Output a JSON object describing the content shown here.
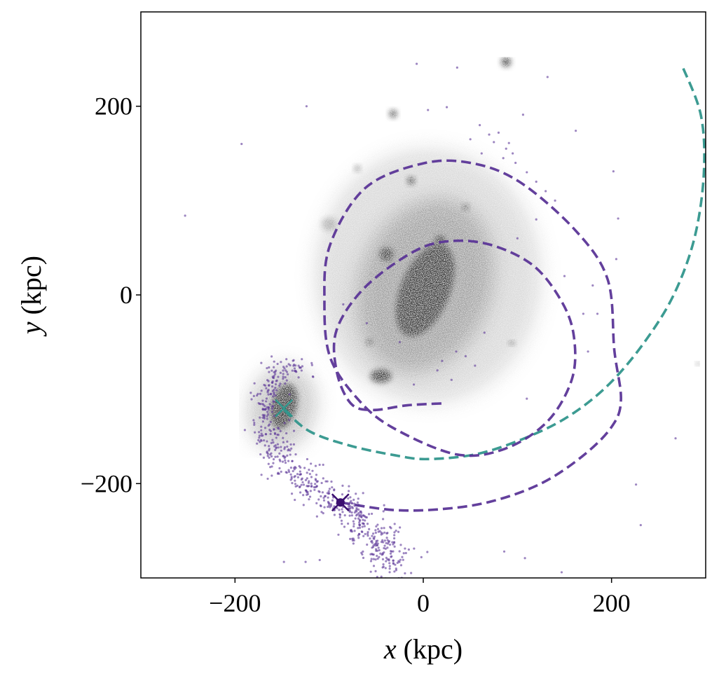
{
  "chart_data": {
    "type": "scatter",
    "title": "",
    "xlabel_var": "x",
    "xlabel_unit": "(kpc)",
    "ylabel_var": "y",
    "ylabel_unit": "(kpc)",
    "xlim": [
      -300,
      300
    ],
    "ylim": [
      -300,
      300
    ],
    "xticks": [
      -200,
      0,
      200
    ],
    "yticks": [
      -200,
      0,
      200
    ],
    "xtick_labels": [
      "−200",
      "0",
      "200"
    ],
    "ytick_labels": [
      "−200",
      "0",
      "200"
    ],
    "grid": false,
    "colors": {
      "teal": "#31968c",
      "purple": "#5b3597",
      "dark_purple": "#3b0f70",
      "gray": "#3a3a3a"
    },
    "galaxies": [
      {
        "name": "host-halo",
        "x": 5,
        "y": 20,
        "rx": 120,
        "ry": 135,
        "angle": 0,
        "opacity": 0.18
      },
      {
        "name": "host-inner-halo",
        "x": 2,
        "y": 10,
        "rx": 70,
        "ry": 95,
        "angle": 20,
        "opacity": 0.35
      },
      {
        "name": "host-core",
        "x": 2,
        "y": 5,
        "rx": 26,
        "ry": 52,
        "angle": 22,
        "opacity": 0.95
      },
      {
        "name": "satellite-main",
        "x": -148,
        "y": -118,
        "rx": 13,
        "ry": 24,
        "angle": 15,
        "opacity": 0.95
      },
      {
        "name": "satellite-main-halo",
        "x": -150,
        "y": -120,
        "rx": 35,
        "ry": 45,
        "angle": 15,
        "opacity": 0.3
      },
      {
        "name": "sat-a",
        "x": -45,
        "y": -86,
        "rx": 11,
        "ry": 7,
        "angle": 0,
        "opacity": 0.95
      },
      {
        "name": "sat-b",
        "x": -39,
        "y": 43,
        "rx": 7,
        "ry": 7,
        "angle": 0,
        "opacity": 0.95
      },
      {
        "name": "sat-c",
        "x": 18,
        "y": 58,
        "rx": 6,
        "ry": 5,
        "angle": 0,
        "opacity": 0.9
      },
      {
        "name": "sat-d",
        "x": 88,
        "y": 247,
        "rx": 5,
        "ry": 5,
        "angle": 0,
        "opacity": 0.95
      },
      {
        "name": "sat-e",
        "x": -32,
        "y": 192,
        "rx": 4,
        "ry": 4,
        "angle": 0,
        "opacity": 0.9
      },
      {
        "name": "sat-f",
        "x": -13,
        "y": 121,
        "rx": 4,
        "ry": 4,
        "angle": 0,
        "opacity": 0.9
      },
      {
        "name": "sat-g",
        "x": 45,
        "y": 93,
        "rx": 3,
        "ry": 3,
        "angle": 0,
        "opacity": 0.8
      },
      {
        "name": "sat-h",
        "x": -70,
        "y": 134,
        "rx": 3,
        "ry": 3,
        "angle": 0,
        "opacity": 0.6
      },
      {
        "name": "sat-i",
        "x": -100,
        "y": 75,
        "rx": 8,
        "ry": 7,
        "angle": 0,
        "opacity": 0.3
      },
      {
        "name": "sat-j",
        "x": -57,
        "y": -50,
        "rx": 3,
        "ry": 3,
        "angle": 0,
        "opacity": 0.8
      },
      {
        "name": "sat-k",
        "x": 94,
        "y": -51,
        "rx": 3,
        "ry": 2,
        "angle": 0,
        "opacity": 0.8
      },
      {
        "name": "sat-l",
        "x": 292,
        "y": -73,
        "rx": 2,
        "ry": 1.5,
        "angle": 0,
        "opacity": 0.8
      }
    ],
    "series": [
      {
        "name": "satellite-orbit",
        "style": "dashed",
        "color": "teal",
        "x": [
          -148,
          -120,
          -77,
          -30,
          5,
          60,
          117,
          160,
          199,
          235,
          266,
          288,
          298,
          295,
          275
        ],
        "y": [
          -122,
          -145,
          -160,
          -170,
          -174,
          -168,
          -148,
          -125,
          -93,
          -50,
          0,
          60,
          128,
          190,
          243
        ]
      },
      {
        "name": "stream-orbit",
        "style": "dashed",
        "color": "purple",
        "x": [
          -88,
          -32,
          20,
          72,
          125,
          169,
          200,
          210,
          203,
          196,
          162,
          102,
          50,
          -2,
          -62,
          -99,
          -105,
          -99,
          -69,
          -32,
          35,
          87,
          132,
          158,
          160,
          147,
          117,
          72,
          28,
          -10,
          -62,
          -92,
          -92,
          -77,
          -54,
          -17,
          20
        ],
        "y": [
          -220,
          -228,
          -227,
          -219,
          -200,
          -171,
          -140,
          -111,
          -59,
          16,
          68,
          120,
          140,
          139,
          113,
          53,
          -7,
          -66,
          -111,
          -141,
          -169,
          -163,
          -134,
          -89,
          -44,
          -7,
          31,
          53,
          57,
          46,
          8,
          -37,
          -81,
          -115,
          -122,
          -117,
          -115
        ]
      }
    ],
    "markers": [
      {
        "name": "satellite-position",
        "symbol": "x",
        "color": "teal",
        "x": -148,
        "y": -120
      },
      {
        "name": "stream-progenitor",
        "symbol": "x",
        "color": "dark_purple",
        "x": -88,
        "y": -220
      }
    ],
    "stream": {
      "color": "purple",
      "count": 650,
      "spread": 6,
      "x": [
        -122,
        -140,
        -157,
        -166,
        -169,
        -166,
        -158,
        -145,
        -128,
        -110,
        -95,
        -80,
        -66,
        -55,
        -45,
        -36,
        -30
      ],
      "y": [
        -76,
        -78,
        -88,
        -104,
        -122,
        -142,
        -162,
        -182,
        -198,
        -210,
        -219,
        -228,
        -240,
        -252,
        -264,
        -275,
        -283
      ]
    },
    "field_points": {
      "color": "purple",
      "x": [
        -7,
        36,
        -124,
        -193,
        -253,
        132,
        162,
        202,
        207,
        205,
        226,
        231,
        268,
        -148,
        -125,
        -110,
        -2,
        86,
        108,
        147,
        5,
        25,
        106,
        91,
        70,
        80,
        60,
        75,
        88,
        95,
        50,
        62,
        85,
        98,
        110,
        120,
        130,
        140,
        35,
        20,
        15,
        45,
        55,
        -60,
        -85,
        -25,
        100,
        150,
        170,
        180,
        30,
        -10,
        65,
        110,
        175,
        185,
        120
      ],
      "y": [
        245,
        241,
        200,
        160,
        84,
        231,
        174,
        131,
        81,
        38,
        -201,
        -244,
        -152,
        -283,
        -283,
        -281,
        -278,
        -272,
        -279,
        -294,
        196,
        199,
        191,
        161,
        170,
        172,
        180,
        162,
        155,
        150,
        165,
        150,
        145,
        140,
        130,
        120,
        110,
        100,
        -60,
        -70,
        -80,
        -65,
        -75,
        -30,
        -10,
        -50,
        60,
        20,
        -20,
        10,
        -90,
        -95,
        -40,
        -110,
        -60,
        -20,
        80
      ]
    }
  }
}
